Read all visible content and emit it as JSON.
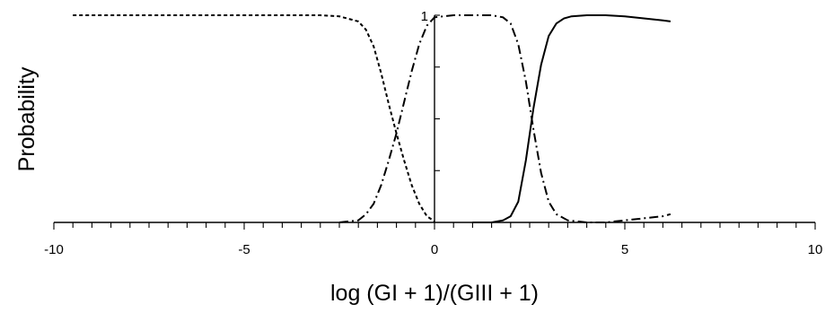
{
  "chart_data": {
    "type": "line",
    "xlabel": "log (GI + 1)/(GIII + 1)",
    "ylabel": "Probability",
    "xlim": [
      -10,
      10
    ],
    "ylim": [
      0,
      1
    ],
    "x_ticks": [
      -10,
      -5,
      0,
      5,
      10
    ],
    "y_tick_labels": [
      {
        "value": 1,
        "label": "1"
      }
    ],
    "y_minor_ticks": [
      0.25,
      0.5,
      0.75,
      1
    ],
    "x_minor_step": 0.5,
    "grid": false,
    "series": [
      {
        "style": "dashed",
        "x": [
          -9.5,
          -5,
          -3,
          -2.5,
          -2,
          -1.8,
          -1.6,
          -1.4,
          -1.2,
          -1,
          -0.8,
          -0.6,
          -0.4,
          -0.2,
          0
        ],
        "y": [
          1,
          1,
          1,
          0.995,
          0.97,
          0.93,
          0.85,
          0.72,
          0.57,
          0.43,
          0.3,
          0.18,
          0.09,
          0.03,
          0.005
        ]
      },
      {
        "style": "dash-dot",
        "x": [
          -2.5,
          -2,
          -1.8,
          -1.6,
          -1.4,
          -1.2,
          -1,
          -0.8,
          -0.6,
          -0.4,
          -0.2,
          0,
          0.5,
          1,
          1.5,
          1.8,
          2,
          2.2,
          2.4,
          2.6,
          2.8,
          3,
          3.2,
          3.5,
          4,
          4.5,
          5,
          5.5,
          6,
          6.2
        ],
        "y": [
          0,
          0.01,
          0.04,
          0.09,
          0.18,
          0.3,
          0.43,
          0.58,
          0.73,
          0.86,
          0.95,
          0.99,
          1,
          1,
          1,
          0.99,
          0.96,
          0.86,
          0.68,
          0.45,
          0.24,
          0.1,
          0.04,
          0.01,
          0,
          0,
          0.01,
          0.02,
          0.03,
          0.04
        ]
      },
      {
        "style": "solid",
        "x": [
          1,
          1.5,
          1.8,
          2,
          2.2,
          2.4,
          2.6,
          2.8,
          3,
          3.2,
          3.4,
          3.6,
          4,
          4.5,
          5,
          5.5,
          6,
          6.2
        ],
        "y": [
          0,
          0,
          0.01,
          0.03,
          0.1,
          0.3,
          0.55,
          0.76,
          0.9,
          0.96,
          0.985,
          0.995,
          1,
          1,
          0.995,
          0.985,
          0.975,
          0.97
        ]
      }
    ]
  }
}
